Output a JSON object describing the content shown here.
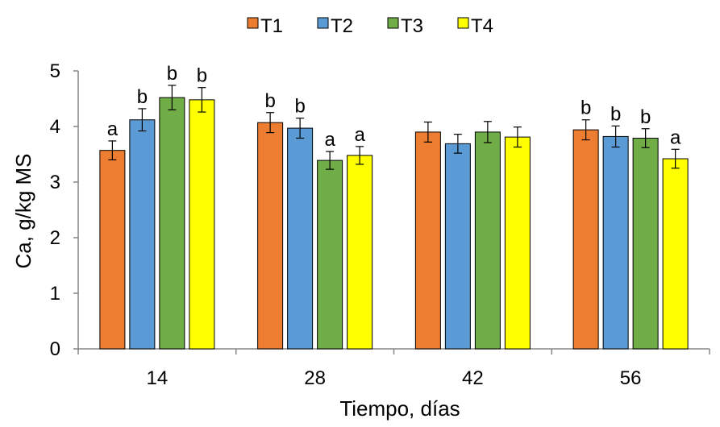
{
  "chart_data": {
    "type": "bar",
    "xlabel": "Tiempo, días",
    "ylabel": "Ca, g/kg MS",
    "ylim": [
      0,
      5
    ],
    "yticks": [
      "0",
      "1",
      "2",
      "3",
      "4",
      "5"
    ],
    "categories": [
      "14",
      "28",
      "42",
      "56"
    ],
    "legend_position": "top",
    "grid": false,
    "series": [
      {
        "name": "T1",
        "color": "#ED7D31",
        "values": [
          3.57,
          4.07,
          3.9,
          3.94
        ],
        "errors": [
          0.17,
          0.18,
          0.18,
          0.18
        ],
        "labels": [
          "a",
          "b",
          "",
          "b"
        ]
      },
      {
        "name": "T2",
        "color": "#5B9BD5",
        "values": [
          4.12,
          3.97,
          3.69,
          3.82
        ],
        "errors": [
          0.2,
          0.18,
          0.17,
          0.19
        ],
        "labels": [
          "b",
          "b",
          "",
          "b"
        ]
      },
      {
        "name": "T3",
        "color": "#70AD47",
        "values": [
          4.52,
          3.39,
          3.9,
          3.79
        ],
        "errors": [
          0.22,
          0.16,
          0.19,
          0.17
        ],
        "labels": [
          "b",
          "a",
          "",
          "b"
        ]
      },
      {
        "name": "T4",
        "color": "#FFFF00",
        "values": [
          4.48,
          3.48,
          3.81,
          3.42
        ],
        "errors": [
          0.22,
          0.16,
          0.18,
          0.17
        ],
        "labels": [
          "b",
          "a",
          "",
          "a"
        ]
      }
    ]
  }
}
